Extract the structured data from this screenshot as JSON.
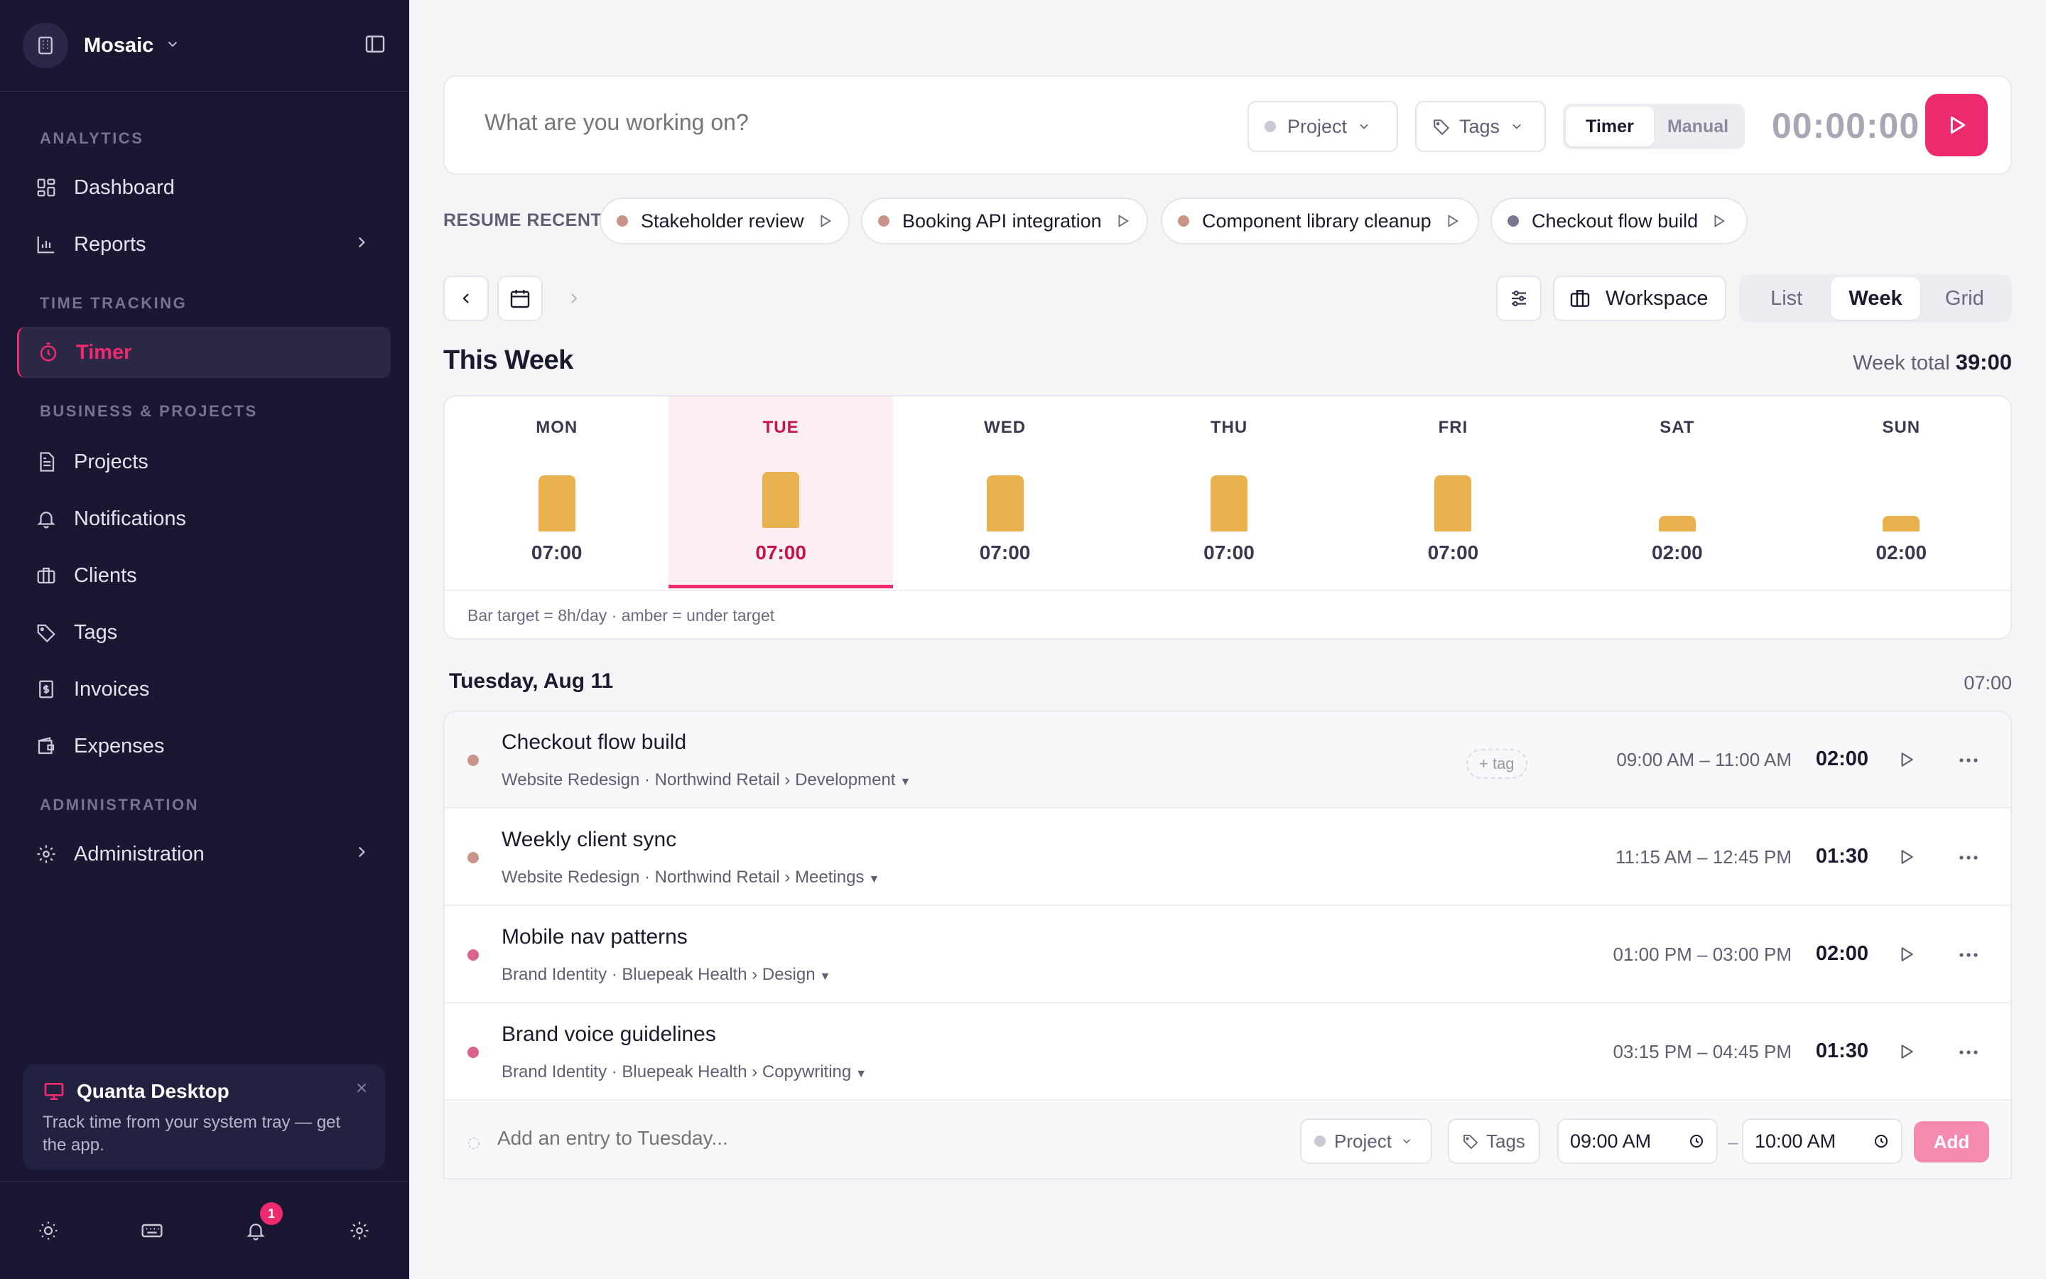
{
  "workspace": {
    "name": "Mosaic"
  },
  "sidebar": {
    "sections": [
      {
        "label": "ANALYTICS"
      },
      {
        "label": "TIME TRACKING"
      },
      {
        "label": "BUSINESS & PROJECTS"
      },
      {
        "label": "ADMINISTRATION"
      }
    ],
    "items": [
      {
        "label": "Dashboard",
        "icon": "dashboard-icon"
      },
      {
        "label": "Reports",
        "icon": "bar-chart-icon"
      },
      {
        "label": "Timer",
        "icon": "stopwatch-icon",
        "active": true
      },
      {
        "label": "Projects",
        "icon": "document-icon"
      },
      {
        "label": "Notifications",
        "icon": "bell-icon"
      },
      {
        "label": "Clients",
        "icon": "briefcase-icon"
      },
      {
        "label": "Tags",
        "icon": "tag-icon"
      },
      {
        "label": "Invoices",
        "icon": "invoice-icon"
      },
      {
        "label": "Expenses",
        "icon": "wallet-icon"
      },
      {
        "label": "Administration",
        "icon": "gear-icon"
      }
    ],
    "promo": {
      "title": "Quanta Desktop",
      "text": "Track time from your system tray — get the app."
    },
    "notification_count": "1"
  },
  "timer": {
    "placeholder": "What are you working on?",
    "project_label": "Project",
    "tags_label": "Tags",
    "mode_timer": "Timer",
    "mode_manual": "Manual",
    "clock": "00:00:00"
  },
  "resume": {
    "label": "RESUME RECENT",
    "items": [
      {
        "label": "Stakeholder review",
        "color": "#c9958a"
      },
      {
        "label": "Booking API integration",
        "color": "#c9958a"
      },
      {
        "label": "Component library cleanup",
        "color": "#c9958a"
      },
      {
        "label": "Checkout flow build",
        "color": "#7b7691"
      }
    ]
  },
  "toolbar": {
    "workspace_label": "Workspace",
    "views": [
      "List",
      "Week",
      "Grid"
    ],
    "active_view": "Week"
  },
  "week": {
    "title": "This Week",
    "total_label": "Week total",
    "total_value": "39:00",
    "days": [
      {
        "name": "MON",
        "value": "07:00",
        "hours": 7
      },
      {
        "name": "TUE",
        "value": "07:00",
        "hours": 7,
        "selected": true
      },
      {
        "name": "WED",
        "value": "07:00",
        "hours": 7
      },
      {
        "name": "THU",
        "value": "07:00",
        "hours": 7
      },
      {
        "name": "FRI",
        "value": "07:00",
        "hours": 7
      },
      {
        "name": "SAT",
        "value": "02:00",
        "hours": 2
      },
      {
        "name": "SUN",
        "value": "02:00",
        "hours": 2
      }
    ],
    "legend": "Bar target = 8h/day · amber = under target",
    "bar_color": "#e9b24e"
  },
  "day_view": {
    "heading": "Tuesday, Aug 11",
    "total": "07:00",
    "entries": [
      {
        "title": "Checkout flow build",
        "meta": "Website Redesign · Northwind Retail › Development",
        "range": "09:00 AM – 11:00 AM",
        "duration": "02:00",
        "tag": "+ tag",
        "color": "#c9958a"
      },
      {
        "title": "Weekly client sync",
        "meta": "Website Redesign · Northwind Retail › Meetings",
        "range": "11:15 AM – 12:45 PM",
        "duration": "01:30",
        "color": "#c9958a"
      },
      {
        "title": "Mobile nav patterns",
        "meta": "Brand Identity · Bluepeak Health › Design",
        "range": "01:00 PM – 03:00 PM",
        "duration": "02:00",
        "color": "#d9628f"
      },
      {
        "title": "Brand voice guidelines",
        "meta": "Brand Identity · Bluepeak Health › Copywriting",
        "range": "03:15 PM – 04:45 PM",
        "duration": "01:30",
        "color": "#d9628f"
      }
    ],
    "add": {
      "placeholder": "Add an entry to Tuesday...",
      "project_label": "Project",
      "tags_label": "Tags",
      "start": "09:00 AM",
      "separator": "–",
      "end": "10:00 AM",
      "button": "Add"
    }
  },
  "colors": {
    "accent": "#ee2a6e",
    "sidebar_bg": "#191731",
    "amber": "#e9b24e"
  }
}
